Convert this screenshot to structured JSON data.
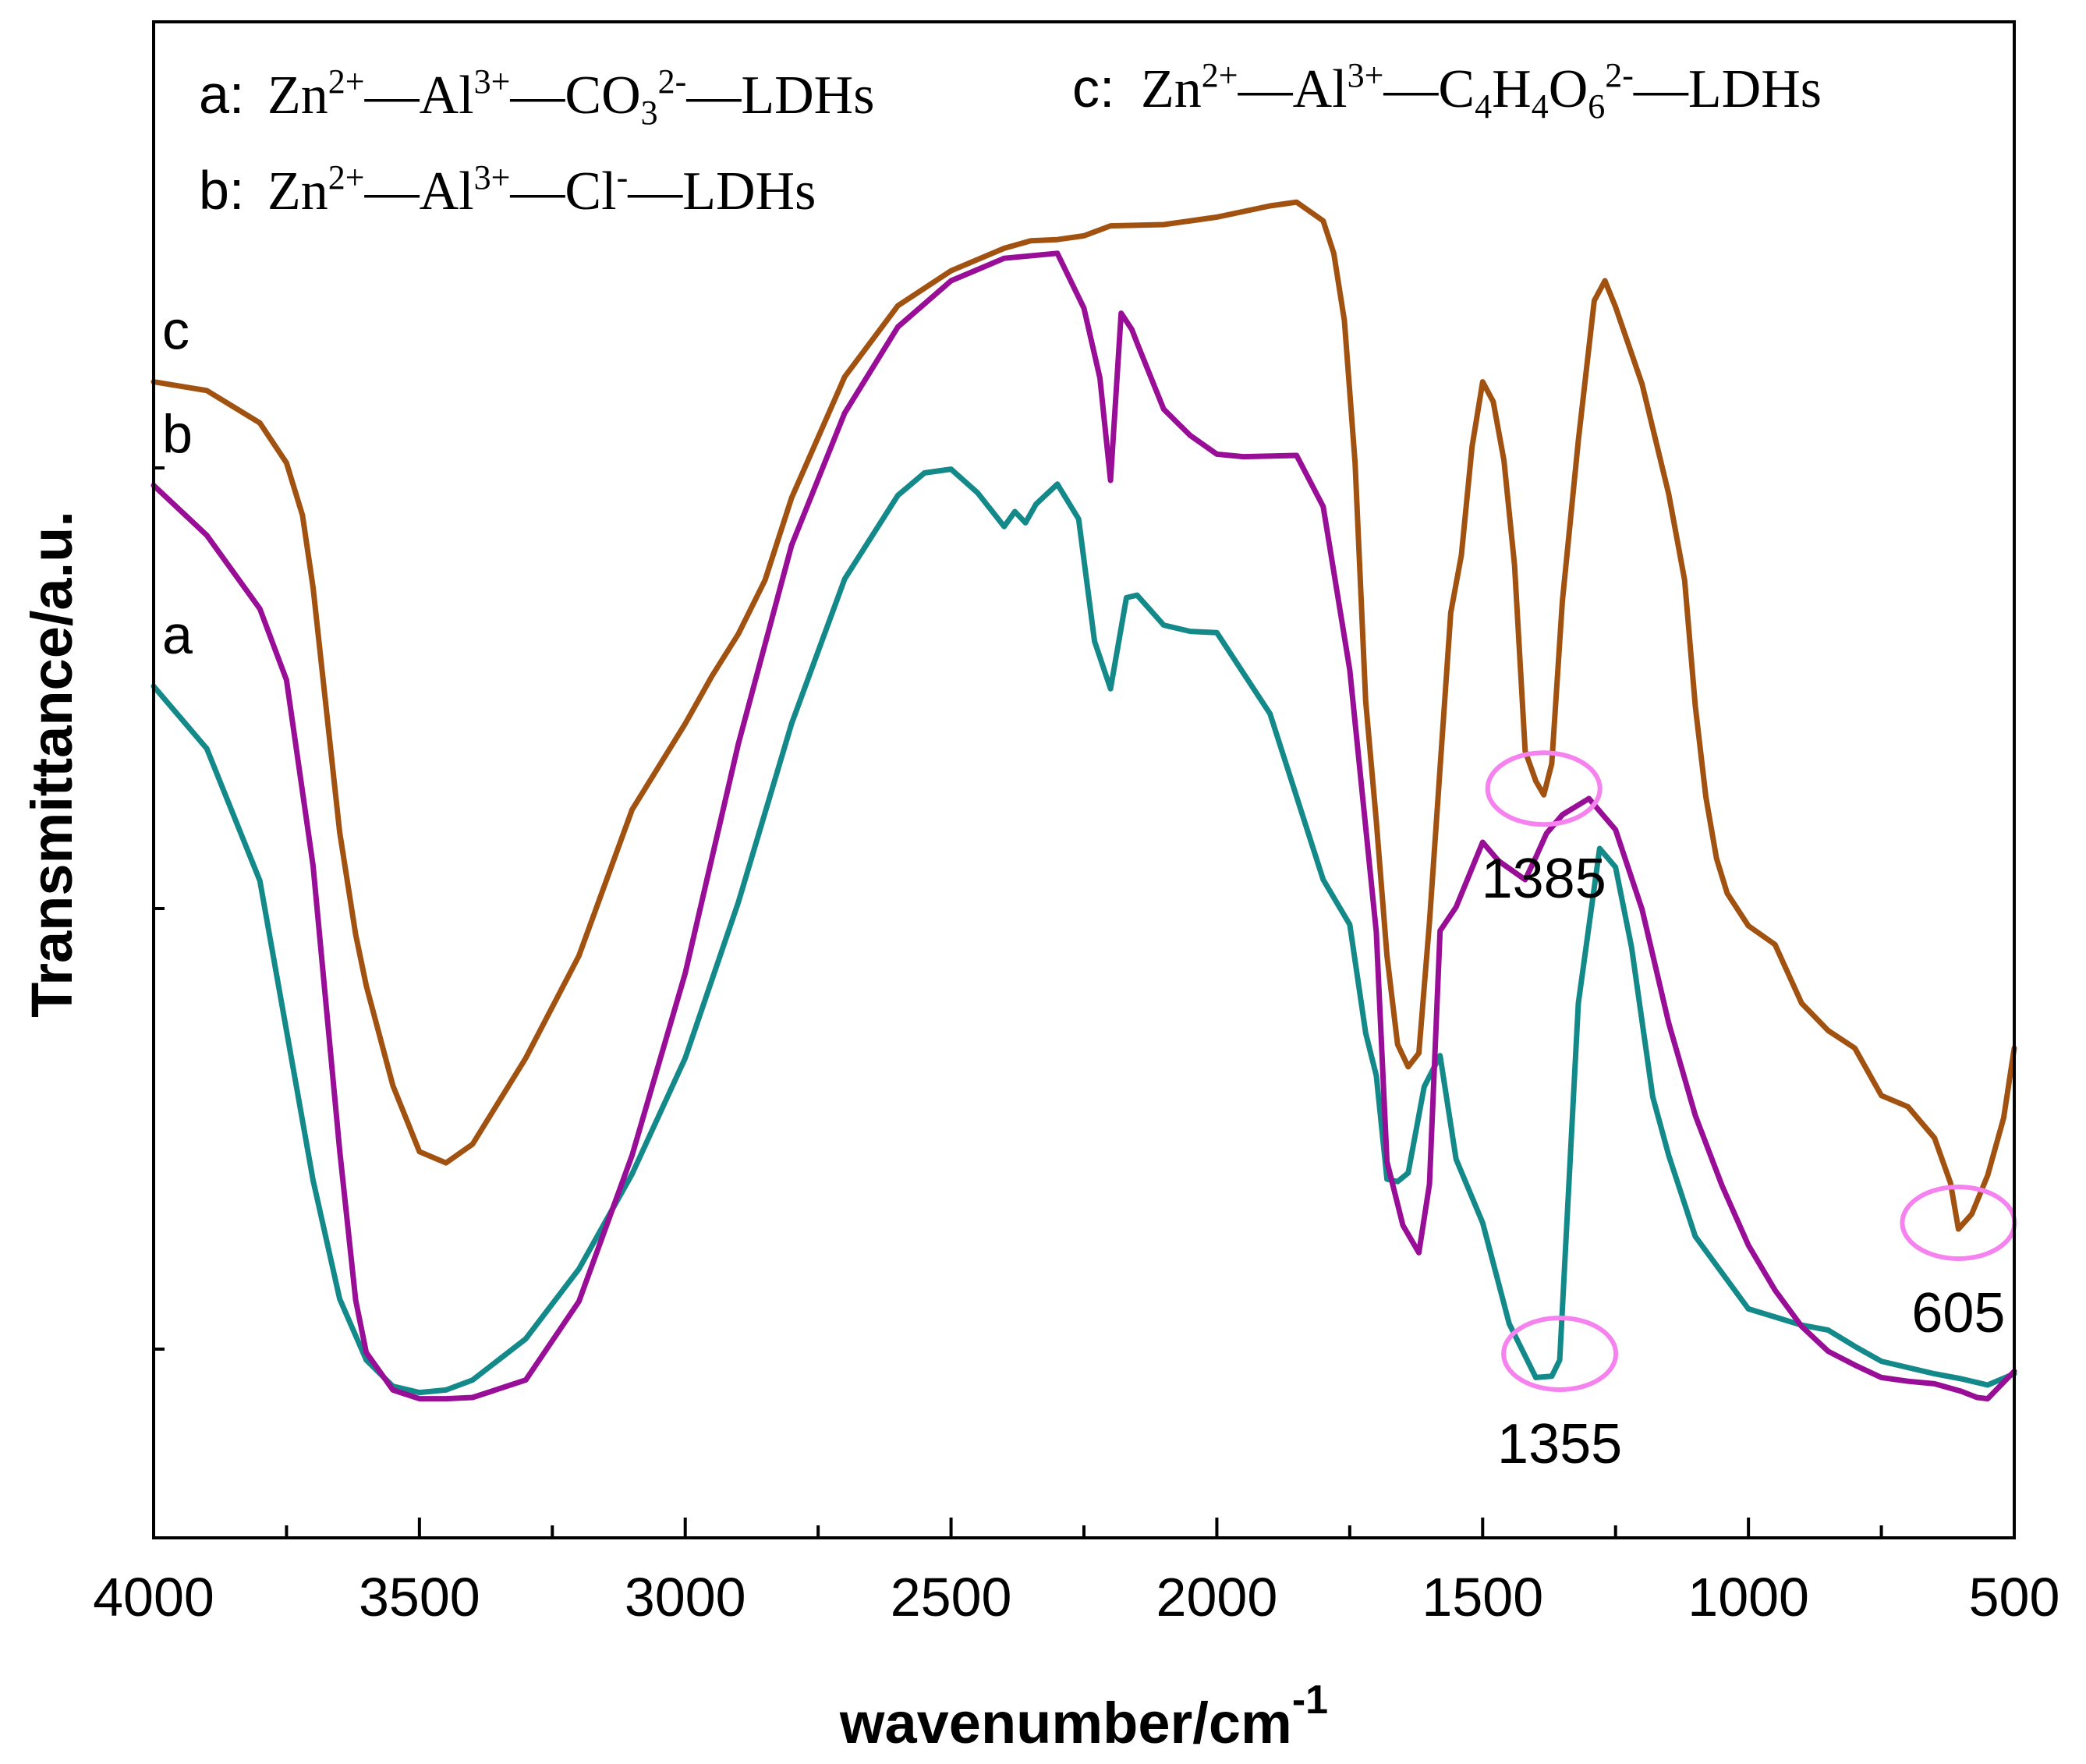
{
  "chart_data": {
    "type": "line",
    "title": "",
    "xlabel": "wavenumber/cm",
    "xlabel_superscript": "-1",
    "ylabel": "Transmittance/a.u.",
    "xlim": [
      4000,
      500
    ],
    "x_reversed": true,
    "ylim": [
      0,
      100
    ],
    "y_ticks_labeled": false,
    "x_ticks": [
      {
        "value": 4000,
        "label": "4000"
      },
      {
        "value": 3500,
        "label": "3500"
      },
      {
        "value": 3000,
        "label": "3000"
      },
      {
        "value": 2500,
        "label": "2500"
      },
      {
        "value": 2000,
        "label": "2000"
      },
      {
        "value": 1500,
        "label": "1500"
      },
      {
        "value": 1000,
        "label": "1000"
      },
      {
        "value": 500,
        "label": "500"
      }
    ],
    "x_minor_step": 250,
    "legend": {
      "placement": "top",
      "entries": [
        {
          "key": "a:",
          "parts": [
            [
              "Zn",
              ""
            ],
            [
              "2+",
              "sup"
            ],
            [
              "—Al",
              ""
            ],
            [
              "3+",
              "sup"
            ],
            [
              "—CO",
              ""
            ],
            [
              "3",
              "sub"
            ],
            [
              "2-",
              "sup"
            ],
            [
              "—LDHs",
              ""
            ]
          ]
        },
        {
          "key": "c:",
          "parts": [
            [
              "Zn",
              ""
            ],
            [
              "2+",
              "sup"
            ],
            [
              "—Al",
              ""
            ],
            [
              "3+",
              "sup"
            ],
            [
              "—C",
              ""
            ],
            [
              "4",
              "sub"
            ],
            [
              "H",
              ""
            ],
            [
              "4",
              "sub"
            ],
            [
              "O",
              ""
            ],
            [
              "6",
              "sub"
            ],
            [
              "2-",
              "sup"
            ],
            [
              "—LDHs",
              ""
            ]
          ]
        },
        {
          "key": "b:",
          "parts": [
            [
              "Zn",
              ""
            ],
            [
              "2+",
              "sup"
            ],
            [
              "—Al",
              ""
            ],
            [
              "3+",
              "sup"
            ],
            [
              "—Cl",
              ""
            ],
            [
              "-",
              "sup"
            ],
            [
              "—LDHs",
              ""
            ]
          ]
        }
      ]
    },
    "series": [
      {
        "name": "a",
        "label": "a",
        "color": "#14898a",
        "x": [
          4000,
          3900,
          3800,
          3700,
          3650,
          3600,
          3550,
          3500,
          3450,
          3400,
          3300,
          3200,
          3100,
          3000,
          2900,
          2800,
          2700,
          2600,
          2550,
          2500,
          2450,
          2400,
          2380,
          2360,
          2340,
          2300,
          2260,
          2230,
          2200,
          2170,
          2150,
          2100,
          2050,
          2000,
          1900,
          1800,
          1750,
          1720,
          1700,
          1680,
          1660,
          1640,
          1610,
          1580,
          1550,
          1500,
          1450,
          1400,
          1370,
          1355,
          1320,
          1280,
          1250,
          1220,
          1180,
          1150,
          1100,
          1000,
          900,
          850,
          800,
          750,
          700,
          650,
          600,
          550,
          500
        ],
        "y": [
          57.5,
          52.5,
          41.9,
          17.9,
          8.4,
          3.5,
          1.4,
          0.9,
          1.1,
          1.9,
          5.2,
          10.8,
          18.4,
          27.7,
          40.2,
          54.5,
          66.1,
          72.8,
          74.6,
          74.9,
          73.0,
          70.3,
          71.5,
          70.6,
          72.1,
          73.7,
          70.9,
          61.1,
          57.3,
          64.6,
          64.8,
          62.4,
          61.9,
          61.8,
          55.3,
          42.0,
          38.4,
          29.7,
          26.3,
          18.0,
          17.8,
          18.5,
          25.4,
          27.9,
          19.6,
          14.5,
          6.4,
          2.1,
          2.2,
          3.5,
          32.1,
          44.5,
          43.0,
          36.6,
          24.6,
          19.9,
          13.4,
          7.6,
          6.3,
          5.9,
          4.6,
          3.4,
          2.9,
          2.4,
          2.0,
          1.5,
          2.4
        ]
      },
      {
        "name": "b",
        "label": "b",
        "color": "#980e96",
        "x": [
          4000,
          3900,
          3800,
          3750,
          3700,
          3650,
          3620,
          3600,
          3550,
          3500,
          3450,
          3400,
          3300,
          3200,
          3100,
          3000,
          2900,
          2800,
          2700,
          2600,
          2500,
          2400,
          2300,
          2250,
          2220,
          2200,
          2180,
          2160,
          2150,
          2100,
          2050,
          2000,
          1950,
          1850,
          1800,
          1750,
          1700,
          1680,
          1650,
          1620,
          1600,
          1580,
          1550,
          1500,
          1470,
          1420,
          1400,
          1380,
          1350,
          1300,
          1250,
          1200,
          1150,
          1100,
          1050,
          1000,
          950,
          900,
          850,
          800,
          750,
          700,
          650,
          600,
          570,
          550,
          500
        ],
        "y": [
          73.6,
          69.6,
          63.7,
          58.0,
          43.1,
          20.3,
          8.3,
          4.1,
          1.1,
          0.4,
          0.4,
          0.5,
          1.9,
          8.2,
          19.9,
          34.5,
          52.9,
          68.8,
          79.4,
          86.3,
          90.0,
          91.8,
          92.2,
          87.8,
          82.2,
          74.0,
          87.4,
          86.1,
          85.0,
          79.7,
          77.6,
          76.1,
          75.9,
          76.0,
          71.9,
          58.8,
          37.8,
          19.4,
          14.3,
          12.1,
          17.6,
          37.9,
          39.8,
          45.0,
          43.5,
          42.0,
          43.8,
          45.7,
          47.2,
          48.5,
          46.0,
          39.6,
          30.5,
          23.1,
          17.5,
          12.7,
          9.1,
          6.2,
          4.2,
          3.1,
          2.1,
          1.8,
          1.6,
          1.0,
          0.5,
          0.4,
          2.6
        ]
      },
      {
        "name": "c",
        "label": "c",
        "color": "#a25210",
        "x": [
          4000,
          3900,
          3800,
          3750,
          3720,
          3700,
          3650,
          3620,
          3600,
          3550,
          3500,
          3450,
          3400,
          3300,
          3200,
          3100,
          3000,
          2950,
          2900,
          2850,
          2800,
          2700,
          2600,
          2500,
          2400,
          2350,
          2300,
          2250,
          2200,
          2100,
          2000,
          1900,
          1850,
          1800,
          1780,
          1760,
          1740,
          1720,
          1700,
          1680,
          1660,
          1640,
          1620,
          1600,
          1560,
          1540,
          1520,
          1500,
          1480,
          1460,
          1440,
          1420,
          1400,
          1385,
          1370,
          1350,
          1320,
          1290,
          1270,
          1250,
          1200,
          1150,
          1120,
          1100,
          1080,
          1060,
          1040,
          1000,
          950,
          900,
          850,
          800,
          750,
          700,
          650,
          620,
          605,
          580,
          550,
          520,
          500
        ],
        "y": [
          81.9,
          81.2,
          78.6,
          75.4,
          71.2,
          65.4,
          45.8,
          37.6,
          33.5,
          25.5,
          20.2,
          19.3,
          20.8,
          27.7,
          35.9,
          47.6,
          54.5,
          58.3,
          61.7,
          66.0,
          72.6,
          82.3,
          88.0,
          90.8,
          92.6,
          93.2,
          93.3,
          93.6,
          94.4,
          94.5,
          95.1,
          96.0,
          96.3,
          94.8,
          92.2,
          86.8,
          75.4,
          56.3,
          46.7,
          35.9,
          28.8,
          27.0,
          28.1,
          38.6,
          63.4,
          68.0,
          76.7,
          81.9,
          80.3,
          75.6,
          67.2,
          52.3,
          49.9,
          48.8,
          51.3,
          64.3,
          77.2,
          88.4,
          90.0,
          87.9,
          81.7,
          72.9,
          66.0,
          55.9,
          48.6,
          43.7,
          40.9,
          38.3,
          36.8,
          32.1,
          29.9,
          28.5,
          24.7,
          23.8,
          21.3,
          17.7,
          14.0,
          15.2,
          18.3,
          22.9,
          28.5
        ]
      }
    ],
    "annotations": [
      {
        "label": "1385",
        "x": 1385,
        "series": "c",
        "marker": "ellipse",
        "color": "#f582ee"
      },
      {
        "label": "1355",
        "x": 1355,
        "series": "a",
        "marker": "ellipse",
        "color": "#f582ee"
      },
      {
        "label": "605",
        "x": 605,
        "series": "c",
        "marker": "ellipse",
        "color": "#f582ee"
      }
    ]
  }
}
